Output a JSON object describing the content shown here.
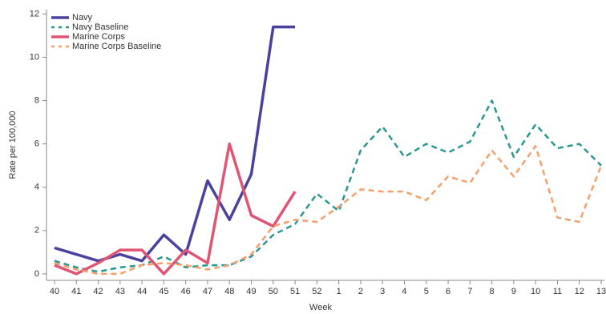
{
  "chart_data": {
    "type": "line",
    "x_label": "Week",
    "y_label": "Rate per 100,000",
    "categories": [
      "40",
      "41",
      "42",
      "43",
      "44",
      "45",
      "46",
      "47",
      "48",
      "49",
      "50",
      "51",
      "52",
      "1",
      "2",
      "3",
      "4",
      "5",
      "6",
      "7",
      "8",
      "9",
      "10",
      "11",
      "12",
      "13"
    ],
    "series": [
      {
        "name": "Navy",
        "color": "#4a42a0",
        "dashed": false,
        "values": [
          1.2,
          0.9,
          0.6,
          0.9,
          0.6,
          1.8,
          0.9,
          4.3,
          2.5,
          4.6,
          11.4,
          11.4,
          null,
          null,
          null,
          null,
          null,
          null,
          null,
          null,
          null,
          null,
          null,
          null,
          null,
          null
        ]
      },
      {
        "name": "Navy Baseline",
        "color": "#2a9690",
        "dashed": true,
        "values": [
          0.6,
          0.3,
          0.1,
          0.3,
          0.4,
          0.8,
          0.3,
          0.4,
          0.4,
          0.8,
          1.8,
          2.3,
          3.7,
          2.9,
          5.7,
          6.8,
          5.4,
          6.0,
          5.6,
          6.1,
          8.0,
          5.4,
          6.9,
          5.8,
          6.0,
          5.0
        ]
      },
      {
        "name": "Marine Corps",
        "color": "#e05474",
        "dashed": false,
        "values": [
          0.4,
          0,
          0.5,
          1.1,
          1.1,
          0,
          1.1,
          0.5,
          6.0,
          2.7,
          2.2,
          3.8,
          null,
          null,
          null,
          null,
          null,
          null,
          null,
          null,
          null,
          null,
          null,
          null,
          null,
          null
        ]
      },
      {
        "name": "Marine Corps Baseline",
        "color": "#f5a06a",
        "dashed": true,
        "values": [
          0.5,
          0.2,
          0.0,
          0.0,
          0.4,
          0.5,
          0.4,
          0.2,
          0.4,
          0.9,
          2.2,
          2.5,
          2.4,
          3.1,
          3.9,
          3.8,
          3.8,
          3.4,
          4.5,
          4.2,
          5.7,
          4.5,
          5.9,
          2.6,
          2.4,
          5.0
        ]
      }
    ],
    "ylim": [
      -0.3,
      12.2
    ],
    "yticks": [
      0,
      2,
      4,
      6,
      8,
      10,
      12
    ],
    "legend": "top-left"
  }
}
